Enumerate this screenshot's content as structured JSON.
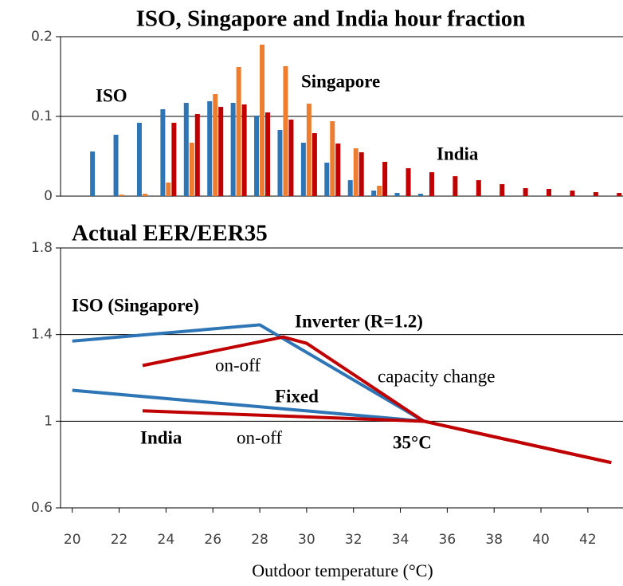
{
  "chart_data": [
    {
      "type": "bar",
      "title": "ISO, Singapore and India hour fraction",
      "x": [
        21,
        22,
        23,
        24,
        25,
        26,
        27,
        28,
        29,
        30,
        31,
        32,
        33,
        34,
        35,
        36,
        37,
        38,
        39,
        40,
        41,
        42,
        43
      ],
      "xlim": [
        19.5,
        43.5
      ],
      "ylim": [
        0,
        0.2
      ],
      "yticks": [
        0,
        0.1,
        0.2
      ],
      "grid": true,
      "series": [
        {
          "name": "ISO",
          "color": "#2e75b6",
          "values": [
            0.056,
            0.077,
            0.092,
            0.109,
            0.117,
            0.119,
            0.117,
            0.101,
            0.083,
            0.067,
            0.042,
            0.02,
            0.007,
            0.004,
            0.003,
            null,
            null,
            null,
            null,
            null,
            null,
            null,
            null
          ]
        },
        {
          "name": "Singapore",
          "color": "#ed7d31",
          "values": [
            null,
            0.002,
            0.003,
            0.017,
            0.067,
            0.128,
            0.162,
            0.19,
            0.163,
            0.116,
            0.094,
            0.06,
            0.013,
            null,
            null,
            null,
            null,
            null,
            null,
            null,
            null,
            null,
            null
          ]
        },
        {
          "name": "India",
          "color": "#c00000",
          "values": [
            null,
            null,
            null,
            0.092,
            0.103,
            0.112,
            0.115,
            0.105,
            0.096,
            0.079,
            0.066,
            0.055,
            0.043,
            0.035,
            0.03,
            0.025,
            0.02,
            0.015,
            0.01,
            0.009,
            0.007,
            0.005,
            0.004
          ]
        }
      ]
    },
    {
      "type": "line",
      "title": "Actual EER/EER35",
      "x_label": "Outdoor temperature (°C)",
      "xlim": [
        19.5,
        43.5
      ],
      "xticks": [
        20,
        22,
        24,
        26,
        28,
        30,
        32,
        34,
        36,
        38,
        40,
        42
      ],
      "ylim": [
        0.6,
        1.8
      ],
      "yticks": [
        0.6,
        1,
        1.4,
        1.8
      ],
      "grid": true,
      "series": [
        {
          "color": "#2e75b6",
          "x": [
            20,
            28,
            35
          ],
          "values": [
            1.37,
            1.445,
            1.0
          ]
        },
        {
          "color": "#2e75b6",
          "x": [
            20,
            35
          ],
          "values": [
            1.143,
            1.0
          ]
        },
        {
          "color": "#c00000",
          "x": [
            23,
            29,
            30,
            35,
            43
          ],
          "values": [
            1.257,
            1.389,
            1.36,
            1.0,
            0.809
          ]
        },
        {
          "color": "#c00000",
          "x": [
            23,
            35,
            43
          ],
          "values": [
            1.048,
            1.0,
            0.809
          ]
        }
      ],
      "annotations": [
        "ISO (Singapore)",
        "Inverter (R=1.2)",
        "on-off",
        "capacity change",
        "Fixed",
        "India",
        "on-off",
        "35°C"
      ]
    }
  ]
}
